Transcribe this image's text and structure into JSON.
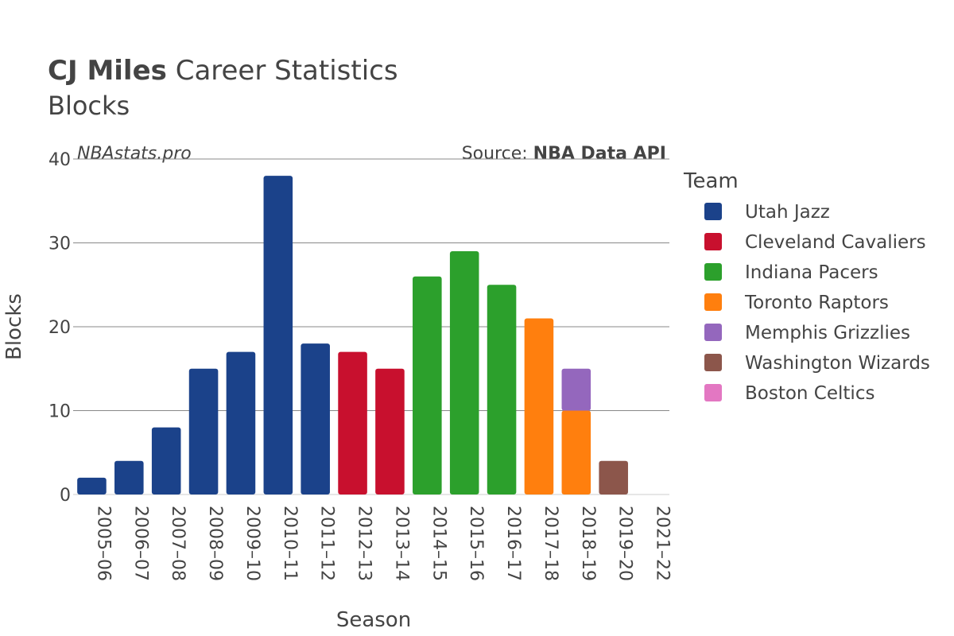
{
  "header": {
    "title_bold": "CJ Miles",
    "title_rest": " Career Statistics",
    "subtitle": "Blocks",
    "watermark": "NBAstats.pro",
    "source_prefix": "Source: ",
    "source_bold": "NBA Data API"
  },
  "colors": {
    "Utah Jazz": "#1b428a",
    "Cleveland Cavaliers": "#c8102e",
    "Indiana Pacers": "#2ca02c",
    "Toronto Raptors": "#ff7f0e",
    "Memphis Grizzlies": "#9467bd",
    "Washington Wizards": "#8c564b",
    "Boston Celtics": "#e377c2"
  },
  "chart_data": {
    "type": "bar",
    "stacked": true,
    "xlabel": "Season",
    "ylabel": "Blocks",
    "ylim": [
      0,
      40
    ],
    "yticks": [
      0,
      10,
      20,
      30,
      40
    ],
    "grid": true,
    "legend_title": "Team",
    "legend_position": "right",
    "categories": [
      "2005–06",
      "2006–07",
      "2007–08",
      "2008–09",
      "2009–10",
      "2010–11",
      "2011–12",
      "2012–13",
      "2013–14",
      "2014–15",
      "2015–16",
      "2016–17",
      "2017–18",
      "2018–19",
      "2019–20",
      "2021–22"
    ],
    "series": [
      {
        "name": "Utah Jazz",
        "values": [
          2,
          4,
          8,
          15,
          17,
          38,
          18,
          0,
          0,
          0,
          0,
          0,
          0,
          0,
          0,
          0
        ]
      },
      {
        "name": "Cleveland Cavaliers",
        "values": [
          0,
          0,
          0,
          0,
          0,
          0,
          0,
          17,
          15,
          0,
          0,
          0,
          0,
          0,
          0,
          0
        ]
      },
      {
        "name": "Indiana Pacers",
        "values": [
          0,
          0,
          0,
          0,
          0,
          0,
          0,
          0,
          0,
          26,
          29,
          25,
          0,
          0,
          0,
          0
        ]
      },
      {
        "name": "Toronto Raptors",
        "values": [
          0,
          0,
          0,
          0,
          0,
          0,
          0,
          0,
          0,
          0,
          0,
          0,
          21,
          10,
          0,
          0
        ]
      },
      {
        "name": "Memphis Grizzlies",
        "values": [
          0,
          0,
          0,
          0,
          0,
          0,
          0,
          0,
          0,
          0,
          0,
          0,
          0,
          5,
          0,
          0
        ]
      },
      {
        "name": "Washington Wizards",
        "values": [
          0,
          0,
          0,
          0,
          0,
          0,
          0,
          0,
          0,
          0,
          0,
          0,
          0,
          0,
          4,
          0
        ]
      },
      {
        "name": "Boston Celtics",
        "values": [
          0,
          0,
          0,
          0,
          0,
          0,
          0,
          0,
          0,
          0,
          0,
          0,
          0,
          0,
          0,
          0
        ]
      }
    ]
  }
}
